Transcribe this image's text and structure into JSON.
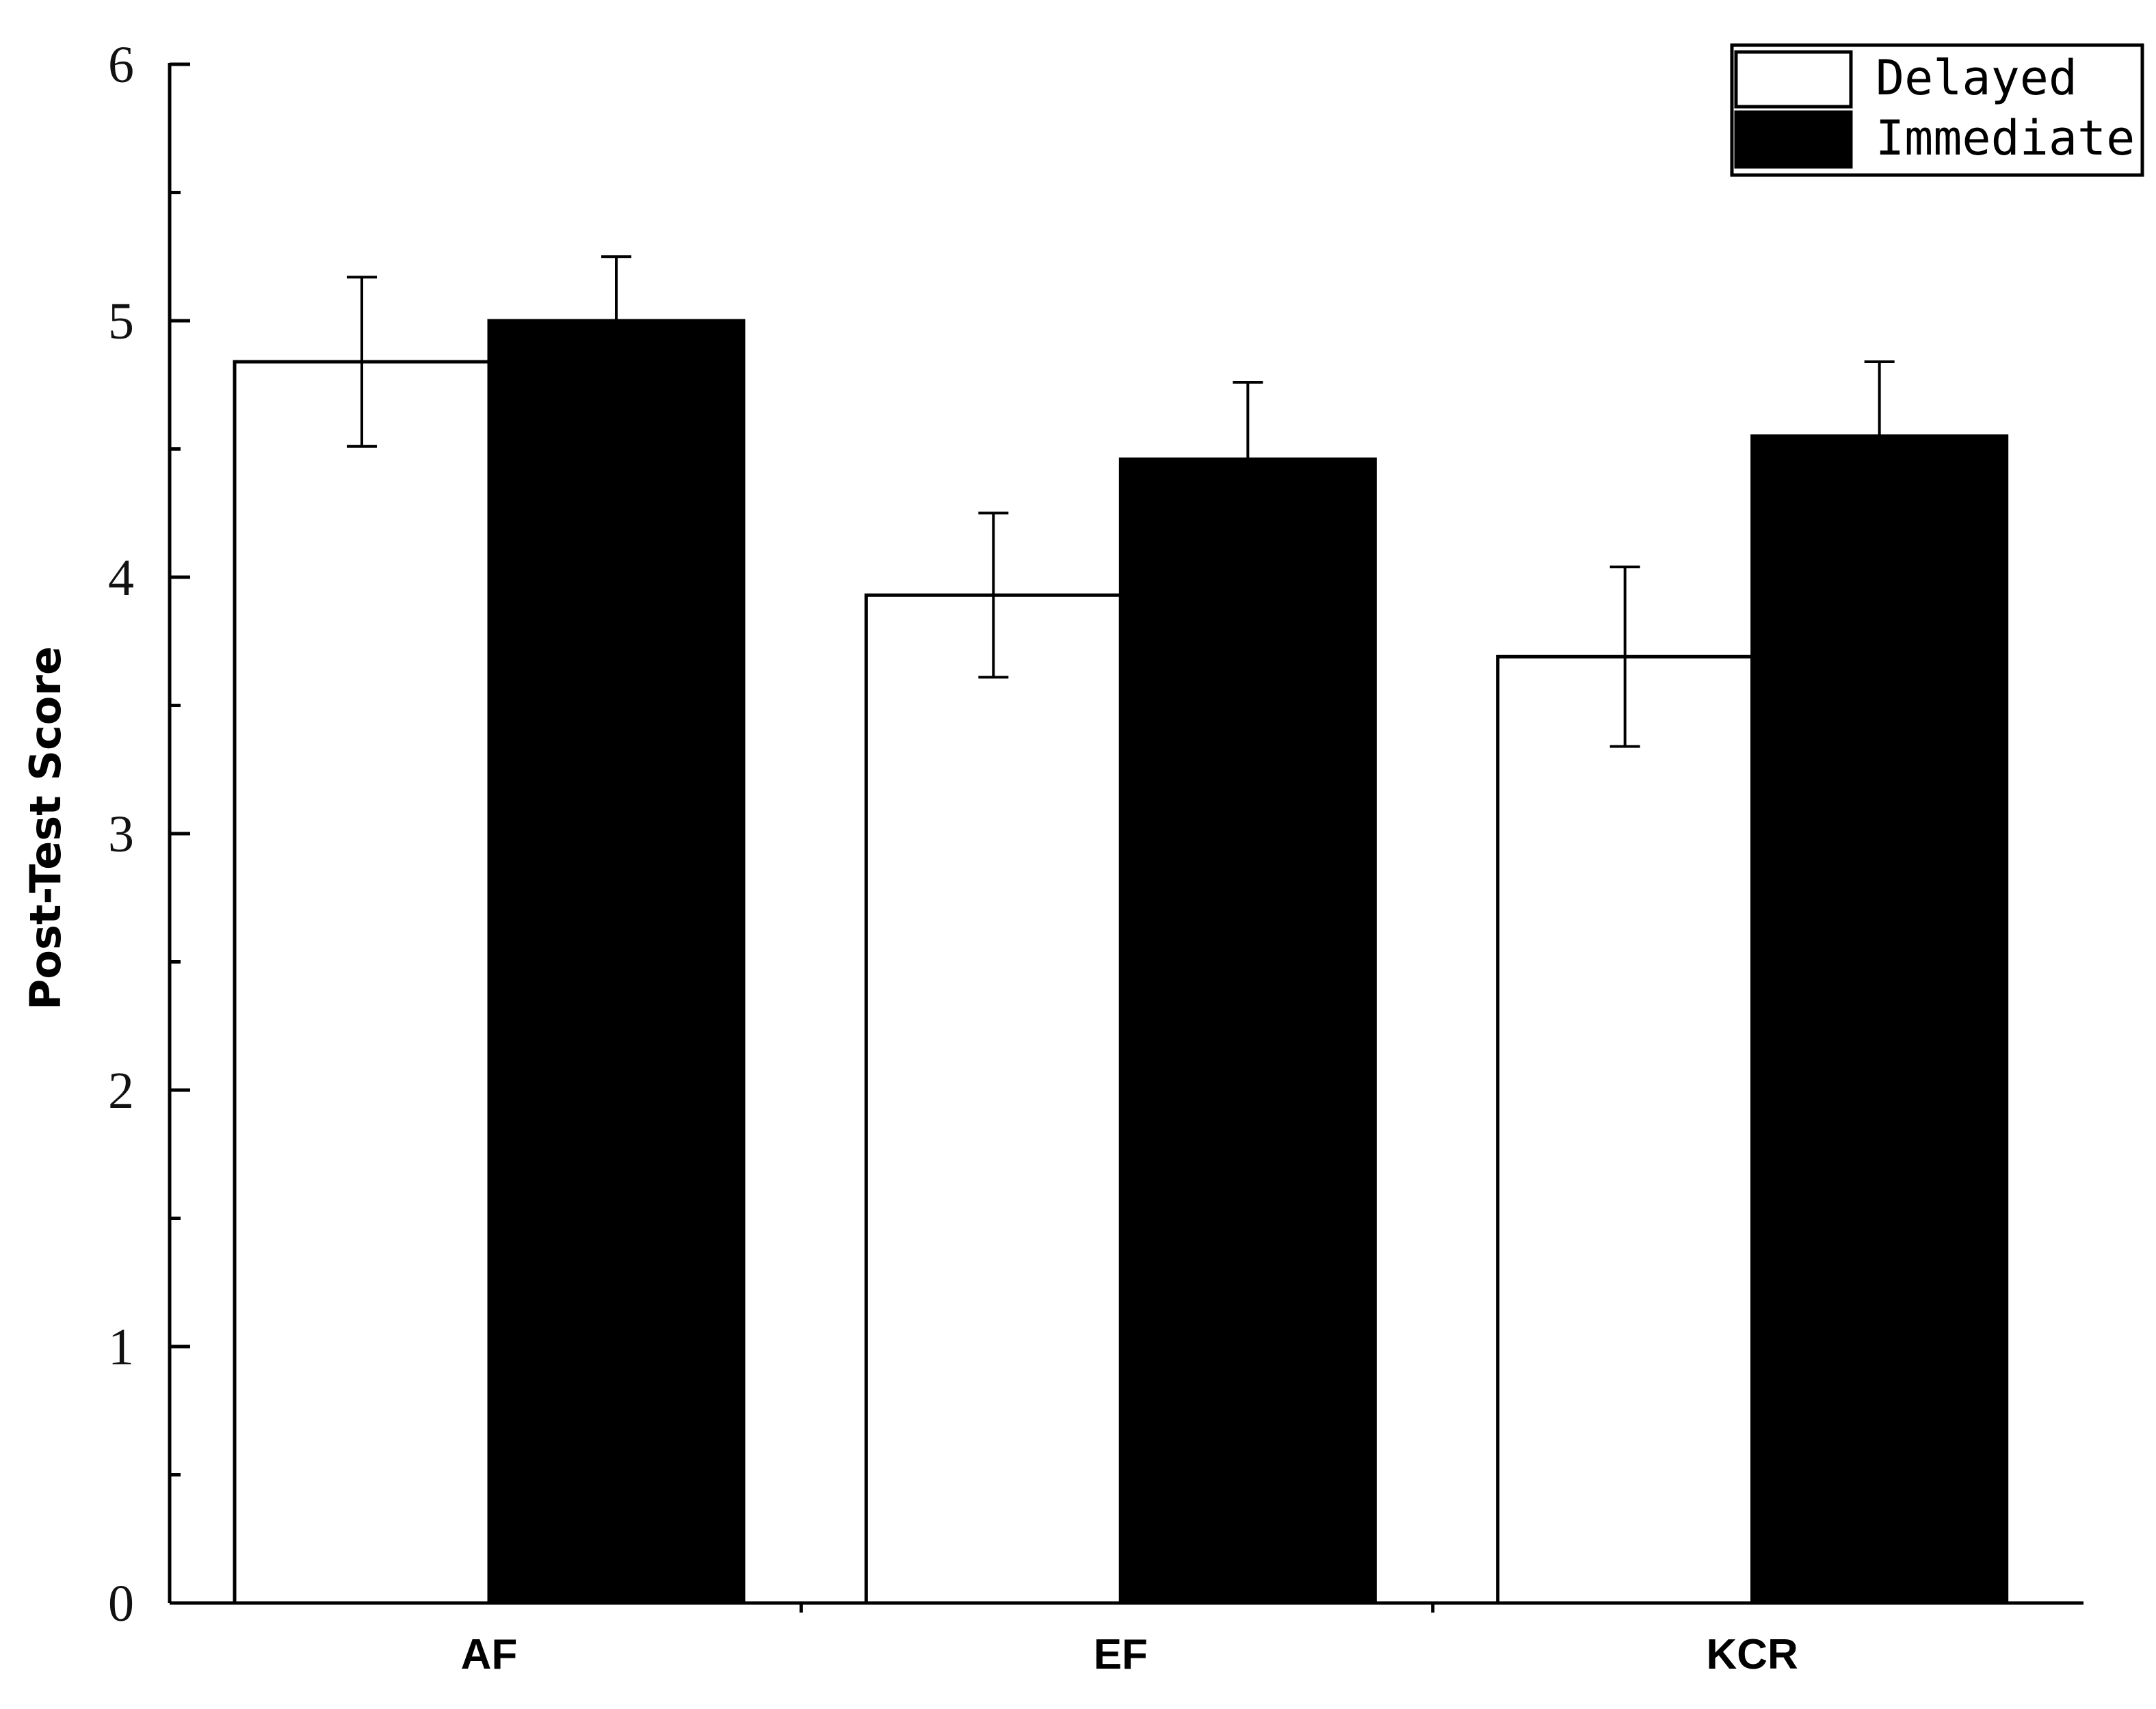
{
  "chart_data": {
    "type": "bar",
    "ylabel": "Post-Test Score",
    "xlabel": "",
    "ylim": [
      0,
      6
    ],
    "yticks": [
      "0",
      "1",
      "2",
      "3",
      "4",
      "5",
      "6"
    ],
    "categories": [
      "AF",
      "EF",
      "KCR"
    ],
    "series": [
      {
        "name": "Delayed",
        "fill": "#ffffff",
        "values": [
          4.84,
          3.93,
          3.69
        ],
        "error": [
          0.33,
          0.32,
          0.35
        ]
      },
      {
        "name": "Immediate",
        "fill": "#000000",
        "values": [
          5.0,
          4.46,
          4.55
        ],
        "error": [
          0.25,
          0.3,
          0.29
        ]
      }
    ],
    "legend_position": "top-right",
    "grid": false
  }
}
